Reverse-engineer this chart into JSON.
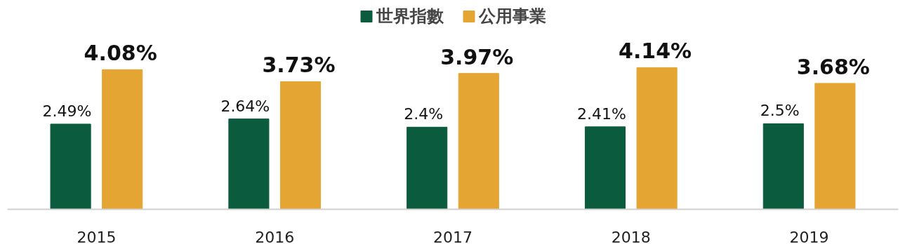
{
  "chart_data": {
    "type": "bar",
    "categories": [
      "2015",
      "2016",
      "2017",
      "2018",
      "2019"
    ],
    "series": [
      {
        "name": "世界指數",
        "color": "#0b5c3f",
        "values": [
          2.49,
          2.64,
          2.4,
          2.41,
          2.5
        ],
        "value_labels": [
          "2.49%",
          "2.64%",
          "2.4%",
          "2.41%",
          "2.5%"
        ]
      },
      {
        "name": "公用事業",
        "color": "#e5a532",
        "values": [
          4.08,
          3.73,
          3.97,
          4.14,
          3.68
        ],
        "value_labels": [
          "4.08%",
          "3.73%",
          "3.97%",
          "4.14%",
          "3.68%"
        ]
      }
    ],
    "legend": "top",
    "grid": false
  }
}
